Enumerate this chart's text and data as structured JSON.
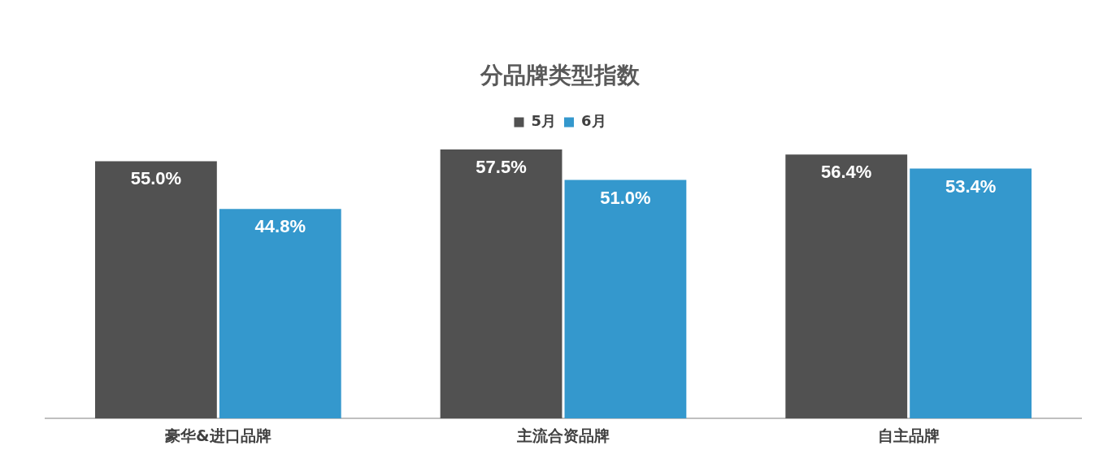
{
  "chart_data": {
    "type": "bar",
    "title": "分品牌类型指数",
    "categories": [
      "豪华&进口品牌",
      "主流合资品牌",
      "自主品牌"
    ],
    "series": [
      {
        "name": "5月",
        "color": "#515151",
        "values": [
          55.0,
          57.5,
          56.4
        ],
        "value_labels": [
          "55.0%",
          "57.5%",
          "56.4%"
        ]
      },
      {
        "name": "6月",
        "color": "#3498cd",
        "values": [
          44.8,
          51.0,
          53.4
        ],
        "value_labels": [
          "44.8%",
          "51.0%",
          "53.4%"
        ]
      }
    ],
    "legend": "top",
    "grid": false,
    "relative": false
  }
}
